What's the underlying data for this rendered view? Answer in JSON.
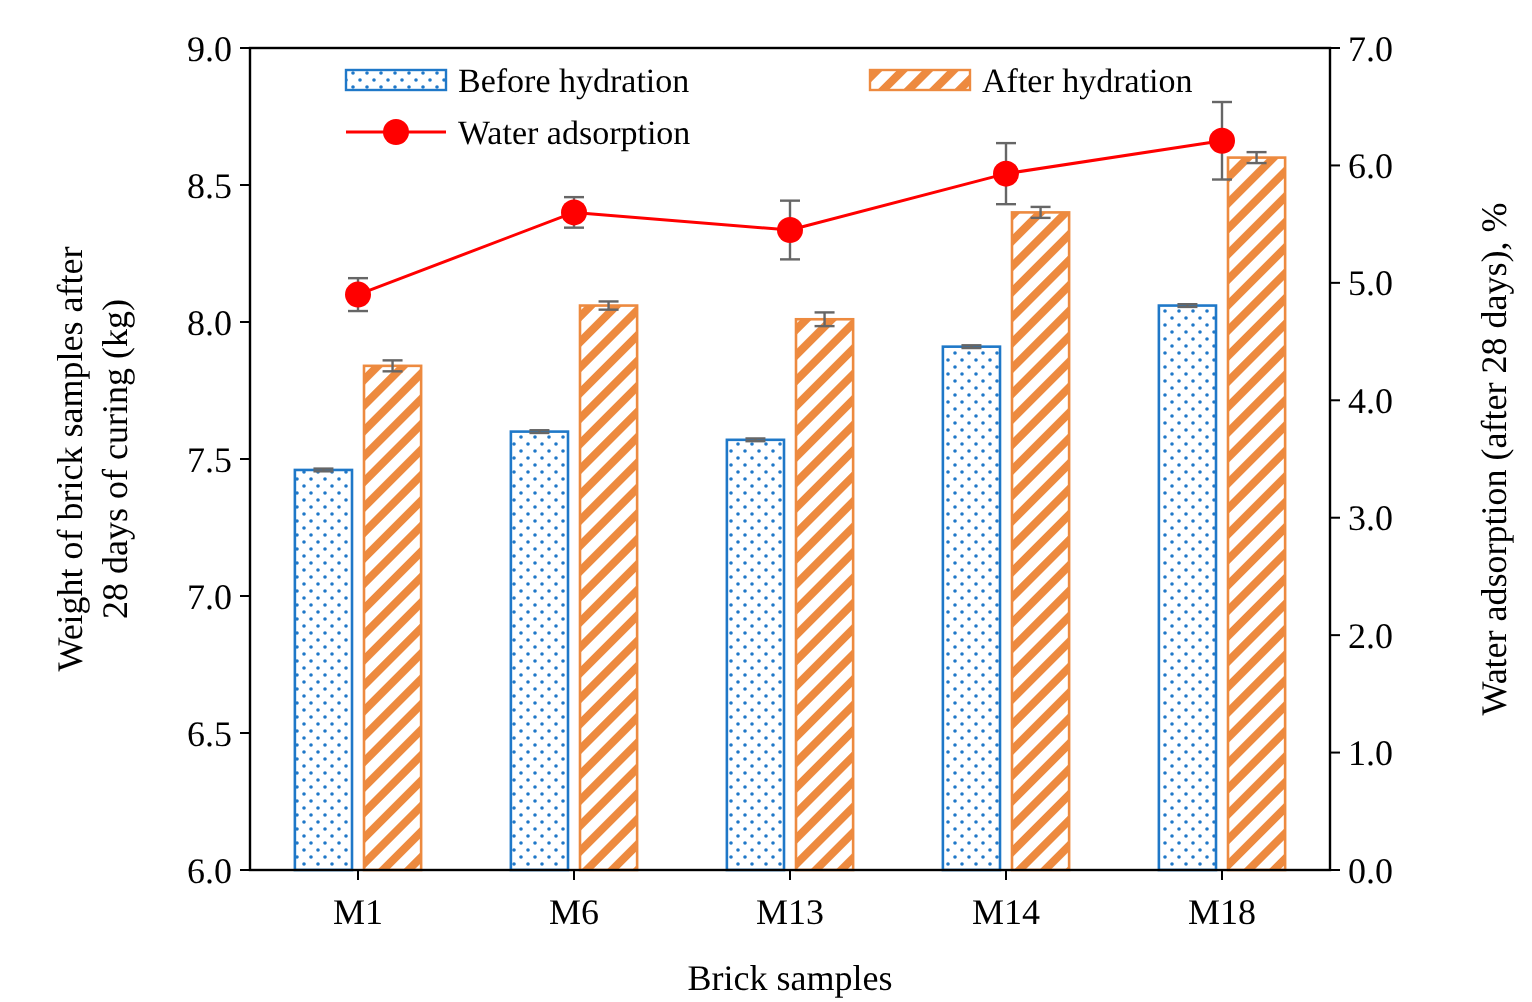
{
  "chart_data": {
    "type": "bar",
    "xlabel": "Brick samples",
    "ylabel": "Weight of brick samples after 28 days of curing (kg)",
    "y2label": "Water adsorption (after 28 days), %",
    "categories": [
      "M1",
      "M6",
      "M13",
      "M14",
      "M18"
    ],
    "series": [
      {
        "name": "Before hydration",
        "color": "#1f78c8",
        "values": [
          7.46,
          7.6,
          7.57,
          7.91,
          8.06
        ],
        "errors": [
          0.005,
          0.005,
          0.005,
          0.005,
          0.005
        ]
      },
      {
        "name": "After hydration",
        "color": "#ed8a3f",
        "values": [
          7.84,
          8.06,
          8.01,
          8.4,
          8.6
        ],
        "errors": [
          0.02,
          0.015,
          0.025,
          0.02,
          0.02
        ]
      },
      {
        "name": "Water adsorption",
        "type": "line",
        "axis": "y2",
        "color": "#ff0000",
        "marker": "circle",
        "values": [
          4.9,
          5.6,
          5.45,
          5.93,
          6.21
        ],
        "errors": [
          0.14,
          0.13,
          0.25,
          0.26,
          0.33
        ]
      }
    ],
    "ylim": [
      6,
      9
    ],
    "yticks": [
      {
        "value": 6,
        "label": "6.0"
      },
      {
        "value": 6.5,
        "label": "6.5"
      },
      {
        "value": 7,
        "label": "7.0"
      },
      {
        "value": 7.5,
        "label": "7.5"
      },
      {
        "value": 8,
        "label": "8.0"
      },
      {
        "value": 8.5,
        "label": "8.5"
      },
      {
        "value": 9,
        "label": "9.0"
      }
    ],
    "y2lim": [
      0,
      7
    ],
    "y2ticks": [
      {
        "value": 0,
        "label": "0.0"
      },
      {
        "value": 1,
        "label": "1.0"
      },
      {
        "value": 2,
        "label": "2.0"
      },
      {
        "value": 3,
        "label": "3.0"
      },
      {
        "value": 4,
        "label": "4.0"
      },
      {
        "value": 5,
        "label": "5.0"
      },
      {
        "value": 6,
        "label": "6.0"
      },
      {
        "value": 7,
        "label": "7.0"
      }
    ],
    "legend": "top",
    "grid": false
  }
}
